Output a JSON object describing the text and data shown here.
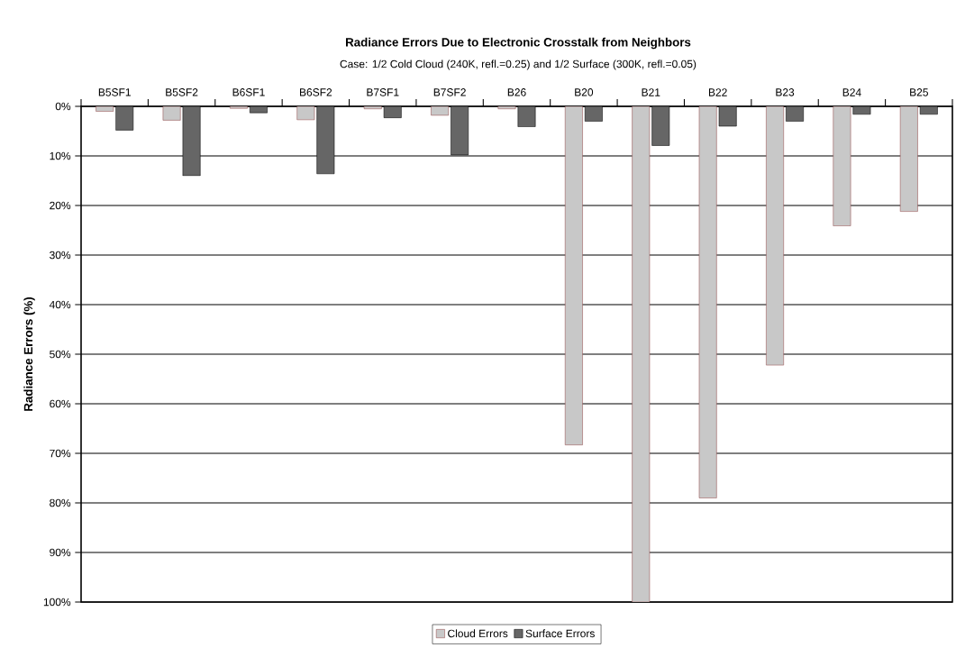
{
  "chart_data": {
    "type": "bar",
    "title": "Radiance Errors Due to Electronic Crosstalk from Neighbors",
    "subtitle": "Case: 1/2 Cold Cloud (240K, refl.=0.25) and 1/2 Surface (300K, refl.=0.05)",
    "ylabel": "Radiance Errors (%)",
    "categories": [
      "B5SF1",
      "B5SF2",
      "B6SF1",
      "B6SF2",
      "B7SF1",
      "B7SF2",
      "B26",
      "B20",
      "B21",
      "B22",
      "B23",
      "B24",
      "B25"
    ],
    "series": [
      {
        "name": "Cloud Errors",
        "color": "#c8c8c8",
        "values": [
          1.0,
          2.8,
          0.4,
          2.7,
          0.5,
          1.8,
          0.5,
          68.3,
          100,
          79,
          52.2,
          24.1,
          21.2
        ]
      },
      {
        "name": "Surface Errors",
        "color": "#666666",
        "values": [
          4.8,
          14,
          1.3,
          13.6,
          2.3,
          9.8,
          4.1,
          3.0,
          7.9,
          4.0,
          3.0,
          1.6,
          1.6
        ]
      }
    ],
    "ylim": [
      100,
      0
    ],
    "yticks": [
      {
        "value": 0,
        "label": "0%"
      },
      {
        "value": 10,
        "label": "10%"
      },
      {
        "value": 20,
        "label": "20%"
      },
      {
        "value": 30,
        "label": "30%"
      },
      {
        "value": 40,
        "label": "40%"
      },
      {
        "value": 50,
        "label": "50%"
      },
      {
        "value": 60,
        "label": "60%"
      },
      {
        "value": 70,
        "label": "70%"
      },
      {
        "value": 80,
        "label": "80%"
      },
      {
        "value": 90,
        "label": "90%"
      },
      {
        "value": 100,
        "label": "100%"
      }
    ],
    "grid": "y",
    "legend": "bottom"
  }
}
